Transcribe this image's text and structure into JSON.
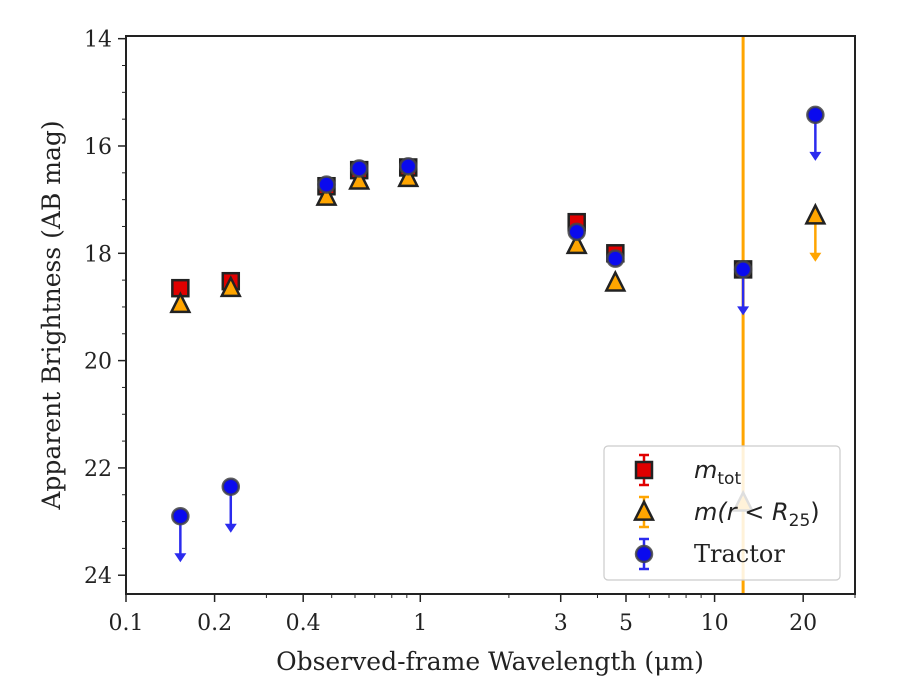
{
  "chart_data": {
    "type": "scatter",
    "xlabel": "Observed-frame Wavelength (μm)",
    "ylabel": "Apparent Brightness (AB mag)",
    "x_scale": "log",
    "xlim": [
      0.1,
      30
    ],
    "ylim": [
      24.35,
      13.95
    ],
    "y_inverted": true,
    "x_ticks": [
      0.1,
      0.2,
      0.4,
      1,
      3,
      5,
      10,
      20
    ],
    "x_tick_labels": [
      "0.1",
      "0.2",
      "0.4",
      "1",
      "3",
      "5",
      "10",
      "20"
    ],
    "y_ticks": [
      14,
      16,
      18,
      20,
      22,
      24
    ],
    "y_tick_labels": [
      "14",
      "16",
      "18",
      "20",
      "22",
      "24"
    ],
    "grid": false,
    "legend_position": "lower-right",
    "vertical_line": {
      "x": 12.5,
      "color": "#ffa500"
    },
    "series": [
      {
        "name": "m_tot",
        "legend_main": "m",
        "legend_sub": "tot",
        "marker": "square",
        "color": "#e00000",
        "points": [
          {
            "x": 0.153,
            "y": 18.65
          },
          {
            "x": 0.227,
            "y": 18.52
          },
          {
            "x": 0.48,
            "y": 16.75
          },
          {
            "x": 0.62,
            "y": 16.45
          },
          {
            "x": 0.91,
            "y": 16.4
          },
          {
            "x": 3.4,
            "y": 17.42
          },
          {
            "x": 4.6,
            "y": 18.0
          },
          {
            "x": 12.5,
            "y": 18.3
          }
        ]
      },
      {
        "name": "m(r < R25)",
        "legend_main": "m(r < R",
        "legend_sub": "25",
        "legend_close": ")",
        "marker": "triangle",
        "color": "#ffa500",
        "points": [
          {
            "x": 0.153,
            "y": 18.95
          },
          {
            "x": 0.227,
            "y": 18.65
          },
          {
            "x": 0.48,
            "y": 16.95
          },
          {
            "x": 0.62,
            "y": 16.65
          },
          {
            "x": 0.91,
            "y": 16.6
          },
          {
            "x": 3.4,
            "y": 17.85
          },
          {
            "x": 4.6,
            "y": 18.55
          },
          {
            "x": 12.5,
            "y": 22.65
          },
          {
            "x": 22,
            "y": 17.3,
            "upper_limit": true
          }
        ]
      },
      {
        "name": "Tractor",
        "marker": "circle",
        "color": "#0a0aee",
        "points": [
          {
            "x": 0.153,
            "y": 22.9,
            "upper_limit": true
          },
          {
            "x": 0.227,
            "y": 22.35,
            "upper_limit": true
          },
          {
            "x": 0.48,
            "y": 16.72
          },
          {
            "x": 0.62,
            "y": 16.42
          },
          {
            "x": 0.91,
            "y": 16.38
          },
          {
            "x": 3.4,
            "y": 17.6
          },
          {
            "x": 4.6,
            "y": 18.1
          },
          {
            "x": 12.5,
            "y": 18.3,
            "upper_limit": true
          },
          {
            "x": 22,
            "y": 15.42,
            "upper_limit": true
          }
        ]
      }
    ],
    "legend_labels": [
      "m",
      "tot",
      "m(r < R",
      "25",
      ")",
      "Tractor"
    ]
  }
}
